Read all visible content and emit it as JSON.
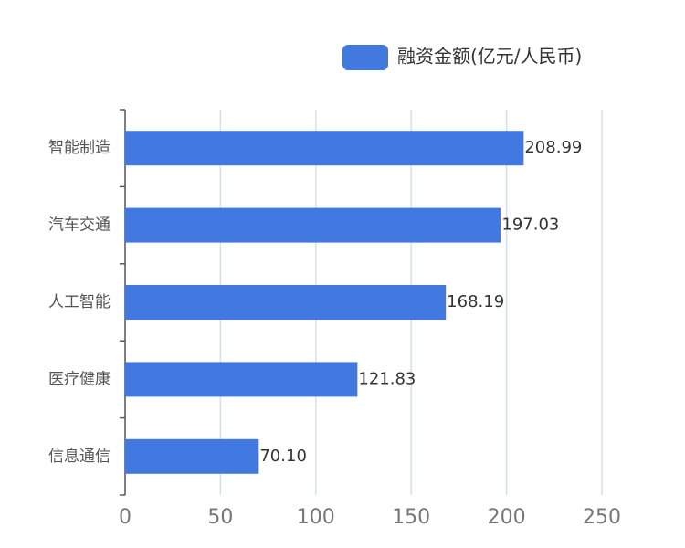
{
  "chart_data": {
    "type": "bar",
    "orientation": "horizontal",
    "categories": [
      "智能制造",
      "汽车交通",
      "人工智能",
      "医疗健康",
      "信息通信"
    ],
    "series": [
      {
        "name": "融资金额(亿元/人民币)",
        "color": "#4279e0",
        "values": [
          208.99,
          197.03,
          168.19,
          121.83,
          70.1
        ],
        "value_labels": [
          "208.99",
          "197.03",
          "168.19",
          "121.83",
          "70.10"
        ]
      }
    ],
    "xlim": [
      0,
      250
    ],
    "xticks": [
      0,
      50,
      100,
      150,
      200,
      250
    ],
    "grid": true
  }
}
